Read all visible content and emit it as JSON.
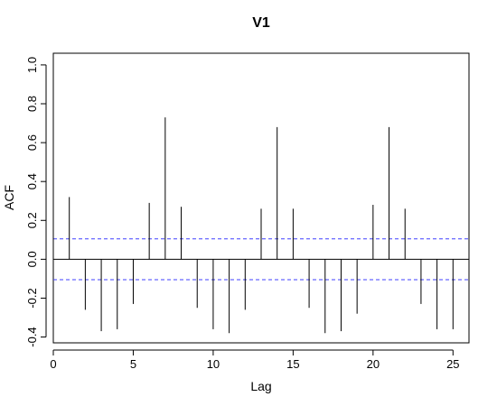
{
  "chart_data": {
    "type": "bar",
    "title": "V1",
    "xlabel": "Lag",
    "ylabel": "ACF",
    "xlim": [
      0,
      26
    ],
    "ylim": [
      -0.43,
      1.06
    ],
    "x_ticks": [
      0,
      5,
      10,
      15,
      20,
      25
    ],
    "x_tick_labels": [
      "0",
      "5",
      "10",
      "15",
      "20",
      "25"
    ],
    "y_ticks": [
      -0.4,
      -0.2,
      0.0,
      0.2,
      0.4,
      0.6,
      0.8,
      1.0
    ],
    "y_tick_labels": [
      "-0.4",
      "-0.2",
      "0.0",
      "0.2",
      "0.4",
      "0.6",
      "0.8",
      "1.0"
    ],
    "lags": [
      0,
      1,
      2,
      3,
      4,
      5,
      6,
      7,
      8,
      9,
      10,
      11,
      12,
      13,
      14,
      15,
      16,
      17,
      18,
      19,
      20,
      21,
      22,
      23,
      24,
      25
    ],
    "acf": [
      1.0,
      0.32,
      -0.26,
      -0.37,
      -0.36,
      -0.23,
      0.29,
      0.73,
      0.27,
      -0.25,
      -0.36,
      -0.38,
      -0.26,
      0.26,
      0.68,
      0.26,
      -0.25,
      -0.38,
      -0.37,
      -0.28,
      0.28,
      0.68,
      0.26,
      -0.23,
      -0.36,
      -0.36
    ],
    "confidence_bounds": [
      0.105,
      -0.105
    ],
    "bound_color": "#4040ff",
    "bar_color": "#000000",
    "grid": false,
    "zero_line": true
  }
}
